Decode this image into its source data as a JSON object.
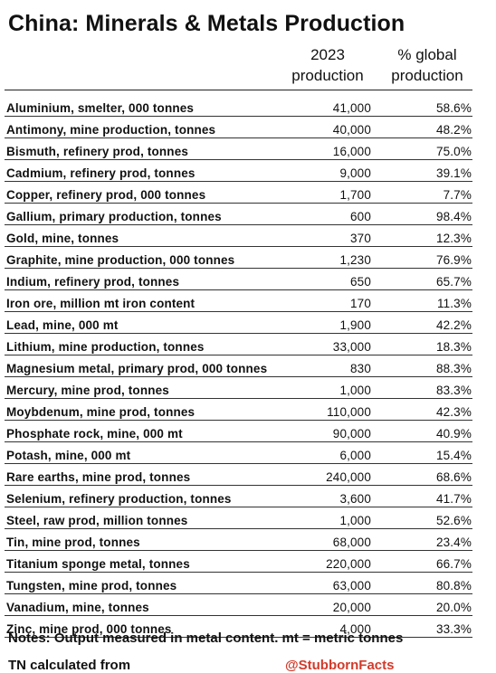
{
  "title": "China: Minerals & Metals Production",
  "columns": {
    "production": [
      "2023",
      "production"
    ],
    "global": [
      "% global",
      "production"
    ]
  },
  "rows": [
    {
      "name": "Aluminium, smelter, 000 tonnes",
      "value": "41,000",
      "pct": "58.6%"
    },
    {
      "name": "Antimony, mine production, tonnes",
      "value": "40,000",
      "pct": "48.2%"
    },
    {
      "name": "Bismuth, refinery prod, tonnes",
      "value": "16,000",
      "pct": "75.0%"
    },
    {
      "name": "Cadmium, refinery prod, tonnes",
      "value": "9,000",
      "pct": "39.1%"
    },
    {
      "name": "Copper, refinery prod, 000 tonnes",
      "value": "1,700",
      "pct": "7.7%"
    },
    {
      "name": "Gallium, primary production, tonnes",
      "value": "600",
      "pct": "98.4%"
    },
    {
      "name": "Gold, mine, tonnes",
      "value": "370",
      "pct": "12.3%"
    },
    {
      "name": "Graphite, mine production, 000 tonnes",
      "value": "1,230",
      "pct": "76.9%"
    },
    {
      "name": "Indium, refinery prod, tonnes",
      "value": "650",
      "pct": "65.7%"
    },
    {
      "name": "Iron ore, million mt iron content",
      "value": "170",
      "pct": "11.3%"
    },
    {
      "name": "Lead, mine, 000 mt",
      "value": "1,900",
      "pct": "42.2%"
    },
    {
      "name": "Lithium, mine production, tonnes",
      "value": "33,000",
      "pct": "18.3%"
    },
    {
      "name": "Magnesium metal, primary prod, 000 tonnes",
      "value": "830",
      "pct": "88.3%"
    },
    {
      "name": "Mercury, mine prod, tonnes",
      "value": "1,000",
      "pct": "83.3%"
    },
    {
      "name": "Moybdenum, mine prod, tonnes",
      "value": "110,000",
      "pct": "42.3%"
    },
    {
      "name": "Phosphate rock, mine, 000 mt",
      "value": "90,000",
      "pct": "40.9%"
    },
    {
      "name": "Potash, mine, 000 mt",
      "value": "6,000",
      "pct": "15.4%"
    },
    {
      "name": "Rare earths, mine prod, tonnes",
      "value": "240,000",
      "pct": "68.6%"
    },
    {
      "name": "Selenium, refinery production, tonnes",
      "value": "3,600",
      "pct": "41.7%"
    },
    {
      "name": "Steel, raw prod, million tonnes",
      "value": "1,000",
      "pct": "52.6%"
    },
    {
      "name": "Tin, mine prod, tonnes",
      "value": "68,000",
      "pct": "23.4%"
    },
    {
      "name": "Titanium sponge metal, tonnes",
      "value": "220,000",
      "pct": "66.7%"
    },
    {
      "name": "Tungsten, mine prod, tonnes",
      "value": "63,000",
      "pct": "80.8%"
    },
    {
      "name": "Vanadium, mine, tonnes",
      "value": "20,000",
      "pct": "20.0%"
    },
    {
      "name": "Zinc, mine prod, 000 tonnes",
      "value": "4,000",
      "pct": "33.3%"
    }
  ],
  "notes": "Notes: Output measured in metal content. mt = metric tonnes",
  "footer": {
    "left": "TN calculated from",
    "right": "@StubbornFacts",
    "accent_color": "#d23a2a"
  }
}
